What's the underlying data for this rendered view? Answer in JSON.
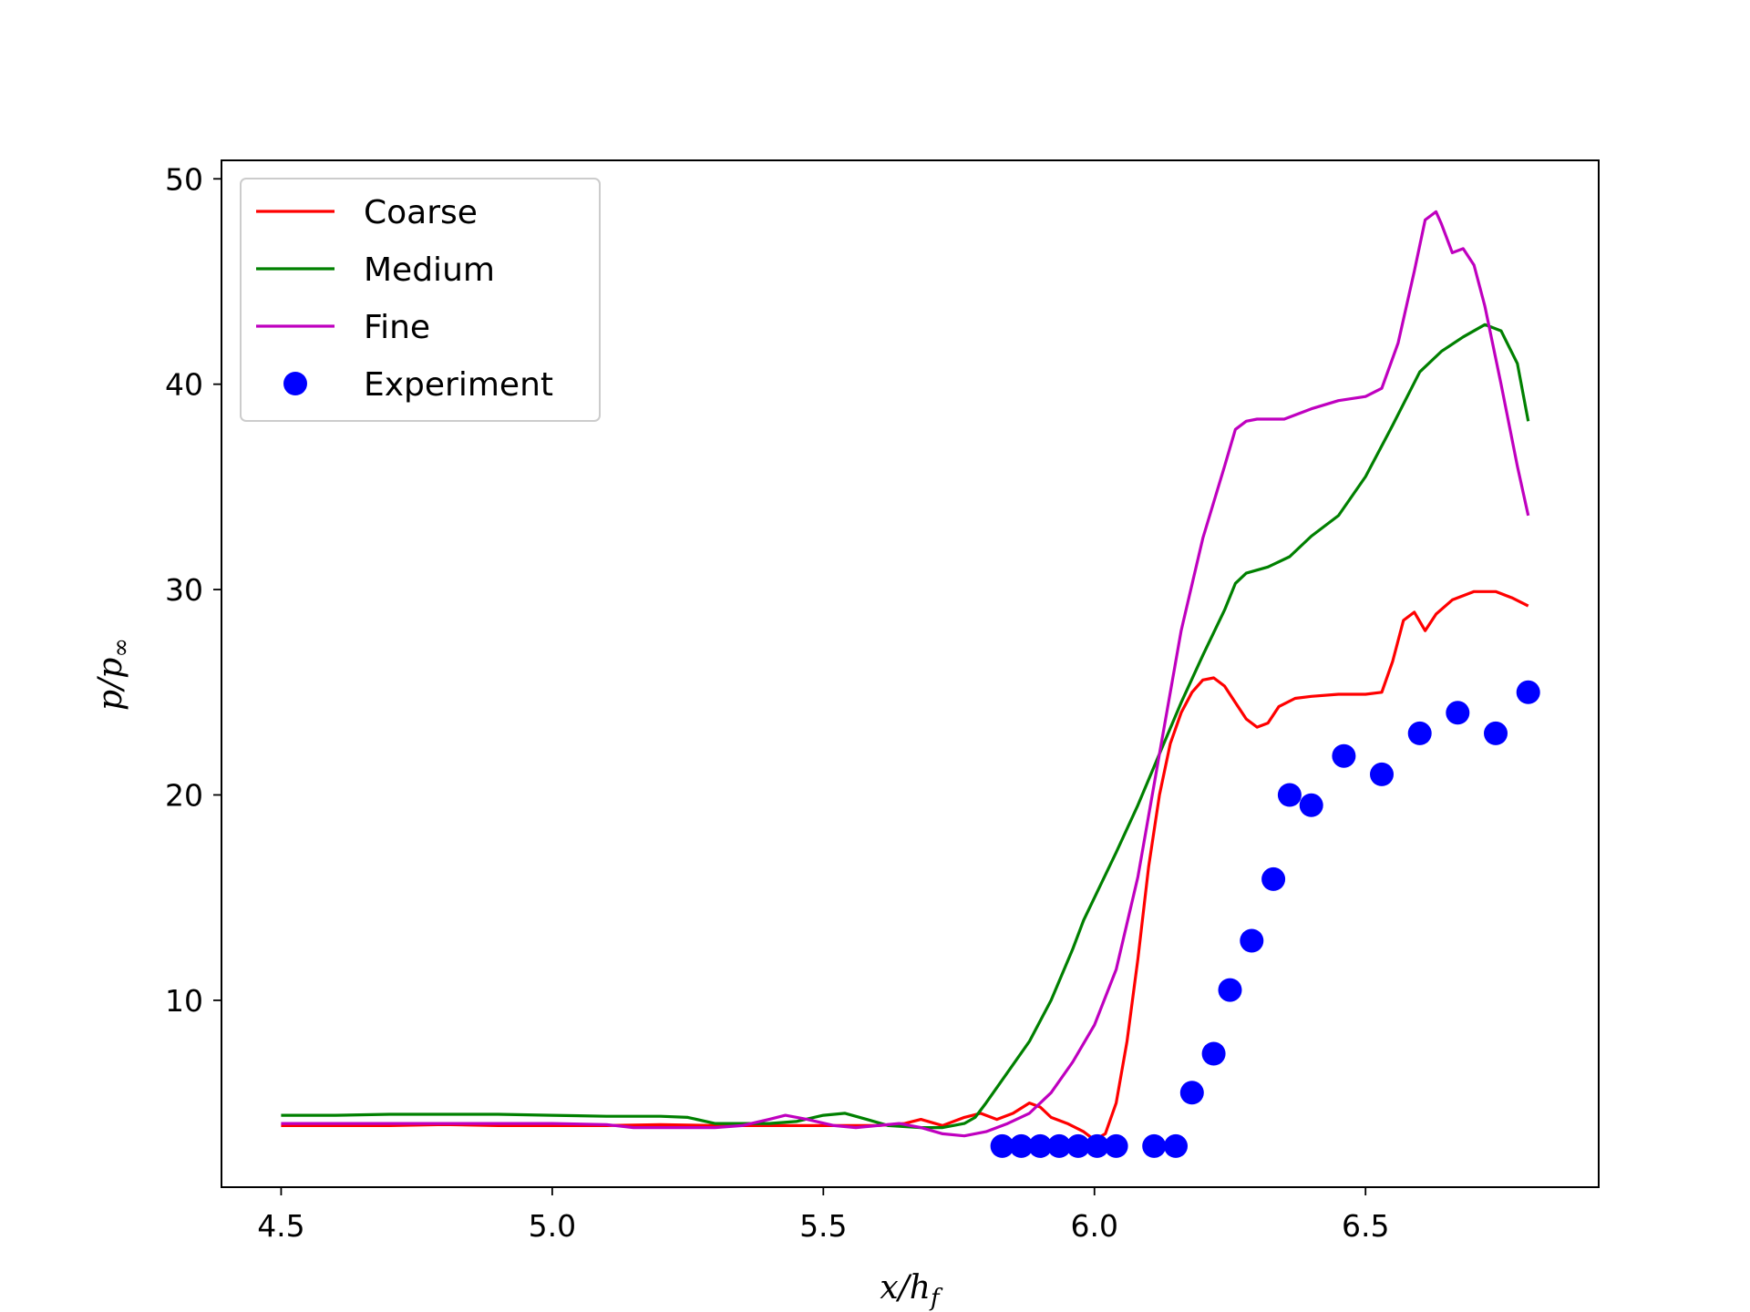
{
  "chart_data": {
    "type": "line",
    "xlabel": "x/h_f",
    "ylabel": "p/p_∞",
    "xlim": [
      4.39,
      6.93
    ],
    "ylim": [
      0.9,
      50.9
    ],
    "xticks": [
      "4.5",
      "5.0",
      "5.5",
      "6.0",
      "6.5"
    ],
    "yticks": [
      "10",
      "20",
      "30",
      "40",
      "50"
    ],
    "grid": false,
    "legend_position": "top-left",
    "series": [
      {
        "name": "Coarse",
        "kind": "line",
        "color": "#ff0000",
        "points": [
          [
            4.5,
            3.9
          ],
          [
            4.6,
            3.9
          ],
          [
            4.7,
            3.9
          ],
          [
            4.8,
            3.95
          ],
          [
            4.9,
            3.9
          ],
          [
            5.0,
            3.9
          ],
          [
            5.1,
            3.9
          ],
          [
            5.2,
            3.95
          ],
          [
            5.3,
            3.9
          ],
          [
            5.4,
            3.9
          ],
          [
            5.5,
            3.9
          ],
          [
            5.6,
            3.9
          ],
          [
            5.65,
            4.0
          ],
          [
            5.68,
            4.2
          ],
          [
            5.72,
            3.9
          ],
          [
            5.76,
            4.3
          ],
          [
            5.79,
            4.5
          ],
          [
            5.82,
            4.2
          ],
          [
            5.85,
            4.5
          ],
          [
            5.88,
            5.0
          ],
          [
            5.9,
            4.8
          ],
          [
            5.92,
            4.3
          ],
          [
            5.95,
            4.0
          ],
          [
            5.98,
            3.6
          ],
          [
            6.0,
            3.2
          ],
          [
            6.02,
            3.5
          ],
          [
            6.04,
            5.0
          ],
          [
            6.06,
            8.0
          ],
          [
            6.08,
            12.0
          ],
          [
            6.1,
            16.5
          ],
          [
            6.12,
            20.0
          ],
          [
            6.14,
            22.5
          ],
          [
            6.16,
            24.0
          ],
          [
            6.18,
            25.0
          ],
          [
            6.2,
            25.6
          ],
          [
            6.22,
            25.7
          ],
          [
            6.24,
            25.3
          ],
          [
            6.26,
            24.5
          ],
          [
            6.28,
            23.7
          ],
          [
            6.3,
            23.3
          ],
          [
            6.32,
            23.5
          ],
          [
            6.34,
            24.3
          ],
          [
            6.37,
            24.7
          ],
          [
            6.4,
            24.8
          ],
          [
            6.45,
            24.9
          ],
          [
            6.5,
            24.9
          ],
          [
            6.53,
            25.0
          ],
          [
            6.55,
            26.5
          ],
          [
            6.57,
            28.5
          ],
          [
            6.59,
            28.9
          ],
          [
            6.61,
            28.0
          ],
          [
            6.63,
            28.8
          ],
          [
            6.66,
            29.5
          ],
          [
            6.7,
            29.9
          ],
          [
            6.74,
            29.9
          ],
          [
            6.77,
            29.6
          ],
          [
            6.8,
            29.2
          ]
        ]
      },
      {
        "name": "Medium",
        "kind": "line",
        "color": "#008000",
        "points": [
          [
            4.5,
            4.4
          ],
          [
            4.6,
            4.4
          ],
          [
            4.7,
            4.45
          ],
          [
            4.8,
            4.45
          ],
          [
            4.9,
            4.45
          ],
          [
            5.0,
            4.4
          ],
          [
            5.1,
            4.35
          ],
          [
            5.2,
            4.35
          ],
          [
            5.25,
            4.3
          ],
          [
            5.3,
            4.0
          ],
          [
            5.4,
            4.0
          ],
          [
            5.45,
            4.1
          ],
          [
            5.5,
            4.4
          ],
          [
            5.54,
            4.5
          ],
          [
            5.58,
            4.2
          ],
          [
            5.62,
            3.9
          ],
          [
            5.68,
            3.8
          ],
          [
            5.72,
            3.8
          ],
          [
            5.76,
            4.0
          ],
          [
            5.78,
            4.3
          ],
          [
            5.8,
            5.0
          ],
          [
            5.84,
            6.5
          ],
          [
            5.88,
            8.0
          ],
          [
            5.92,
            10.0
          ],
          [
            5.96,
            12.5
          ],
          [
            5.98,
            13.9
          ],
          [
            6.0,
            15.0
          ],
          [
            6.04,
            17.2
          ],
          [
            6.08,
            19.5
          ],
          [
            6.12,
            22.0
          ],
          [
            6.16,
            24.5
          ],
          [
            6.2,
            26.8
          ],
          [
            6.24,
            29.0
          ],
          [
            6.26,
            30.3
          ],
          [
            6.28,
            30.8
          ],
          [
            6.32,
            31.1
          ],
          [
            6.36,
            31.6
          ],
          [
            6.4,
            32.6
          ],
          [
            6.45,
            33.6
          ],
          [
            6.5,
            35.5
          ],
          [
            6.55,
            38.0
          ],
          [
            6.6,
            40.6
          ],
          [
            6.64,
            41.6
          ],
          [
            6.68,
            42.3
          ],
          [
            6.72,
            42.9
          ],
          [
            6.75,
            42.6
          ],
          [
            6.78,
            41.0
          ],
          [
            6.8,
            38.2
          ]
        ]
      },
      {
        "name": "Fine",
        "kind": "line",
        "color": "#bf00bf",
        "points": [
          [
            4.5,
            4.0
          ],
          [
            4.6,
            4.0
          ],
          [
            4.7,
            4.0
          ],
          [
            4.8,
            4.0
          ],
          [
            4.9,
            4.0
          ],
          [
            5.0,
            4.0
          ],
          [
            5.1,
            3.95
          ],
          [
            5.15,
            3.8
          ],
          [
            5.2,
            3.8
          ],
          [
            5.3,
            3.8
          ],
          [
            5.35,
            3.9
          ],
          [
            5.4,
            4.2
          ],
          [
            5.43,
            4.4
          ],
          [
            5.47,
            4.2
          ],
          [
            5.52,
            3.9
          ],
          [
            5.56,
            3.8
          ],
          [
            5.6,
            3.9
          ],
          [
            5.64,
            4.0
          ],
          [
            5.68,
            3.8
          ],
          [
            5.72,
            3.5
          ],
          [
            5.76,
            3.4
          ],
          [
            5.8,
            3.6
          ],
          [
            5.84,
            4.0
          ],
          [
            5.88,
            4.5
          ],
          [
            5.92,
            5.5
          ],
          [
            5.96,
            7.0
          ],
          [
            6.0,
            8.8
          ],
          [
            6.04,
            11.5
          ],
          [
            6.08,
            16.0
          ],
          [
            6.12,
            22.0
          ],
          [
            6.16,
            28.0
          ],
          [
            6.2,
            32.5
          ],
          [
            6.24,
            36.0
          ],
          [
            6.26,
            37.8
          ],
          [
            6.28,
            38.2
          ],
          [
            6.3,
            38.3
          ],
          [
            6.35,
            38.3
          ],
          [
            6.4,
            38.8
          ],
          [
            6.45,
            39.2
          ],
          [
            6.5,
            39.4
          ],
          [
            6.53,
            39.8
          ],
          [
            6.56,
            42.0
          ],
          [
            6.59,
            45.5
          ],
          [
            6.61,
            48.0
          ],
          [
            6.63,
            48.4
          ],
          [
            6.64,
            47.8
          ],
          [
            6.66,
            46.4
          ],
          [
            6.68,
            46.6
          ],
          [
            6.7,
            45.8
          ],
          [
            6.72,
            43.8
          ],
          [
            6.75,
            40.0
          ],
          [
            6.78,
            36.0
          ],
          [
            6.8,
            33.6
          ]
        ]
      },
      {
        "name": "Experiment",
        "kind": "markers",
        "color": "#0000ff",
        "points": [
          [
            5.83,
            2.9
          ],
          [
            5.865,
            2.9
          ],
          [
            5.9,
            2.9
          ],
          [
            5.935,
            2.9
          ],
          [
            5.97,
            2.9
          ],
          [
            6.005,
            2.9
          ],
          [
            6.04,
            2.9
          ],
          [
            6.11,
            2.9
          ],
          [
            6.15,
            2.9
          ],
          [
            6.18,
            5.5
          ],
          [
            6.22,
            7.4
          ],
          [
            6.25,
            10.5
          ],
          [
            6.29,
            12.9
          ],
          [
            6.33,
            15.9
          ],
          [
            6.36,
            20.0
          ],
          [
            6.4,
            19.5
          ],
          [
            6.46,
            21.9
          ],
          [
            6.53,
            21.0
          ],
          [
            6.6,
            23.0
          ],
          [
            6.67,
            24.0
          ],
          [
            6.74,
            23.0
          ],
          [
            6.8,
            25.0
          ]
        ]
      }
    ]
  }
}
